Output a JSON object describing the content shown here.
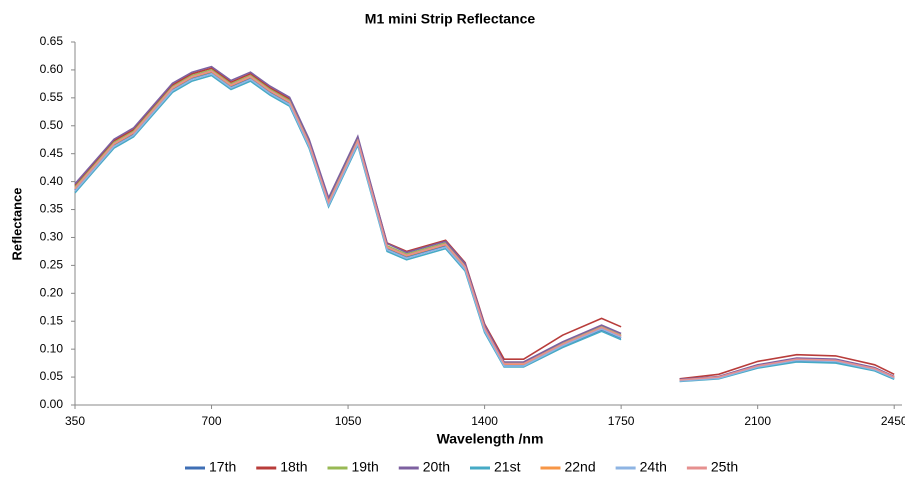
{
  "chart_data": {
    "type": "line",
    "title": "M1 mini Strip Reflectance",
    "xlabel": "Wavelength /nm",
    "ylabel": "Reflectance",
    "x": [
      350,
      400,
      450,
      500,
      550,
      600,
      650,
      700,
      750,
      800,
      850,
      900,
      950,
      1000,
      1075,
      1150,
      1200,
      1300,
      1350,
      1400,
      1450,
      1500,
      1600,
      1700,
      1750,
      1800,
      1900,
      2000,
      2100,
      2200,
      2300,
      2400,
      2450
    ],
    "series": [
      {
        "name": "17th",
        "color": "#3f6fb5",
        "values": [
          0.385,
          0.425,
          0.465,
          0.485,
          0.525,
          0.565,
          0.585,
          0.595,
          0.57,
          0.585,
          0.56,
          0.54,
          0.465,
          0.36,
          0.47,
          0.28,
          0.265,
          0.285,
          0.245,
          0.135,
          0.072,
          0.072,
          0.105,
          0.135,
          0.12,
          null,
          0.043,
          0.048,
          0.067,
          0.079,
          0.077,
          0.062,
          0.048
        ]
      },
      {
        "name": "18th",
        "color": "#b83c3a",
        "values": [
          0.393,
          0.433,
          0.473,
          0.493,
          0.533,
          0.573,
          0.593,
          0.603,
          0.578,
          0.593,
          0.568,
          0.548,
          0.473,
          0.368,
          0.478,
          0.29,
          0.275,
          0.295,
          0.255,
          0.145,
          0.082,
          0.082,
          0.125,
          0.155,
          0.14,
          null,
          0.047,
          0.055,
          0.078,
          0.09,
          0.088,
          0.072,
          0.055
        ]
      },
      {
        "name": "19th",
        "color": "#98b954",
        "values": [
          0.39,
          0.43,
          0.47,
          0.49,
          0.53,
          0.57,
          0.59,
          0.6,
          0.575,
          0.59,
          0.565,
          0.545,
          0.47,
          0.365,
          0.475,
          0.285,
          0.27,
          0.29,
          0.25,
          0.14,
          0.075,
          0.075,
          0.11,
          0.14,
          0.125,
          null,
          0.045,
          0.05,
          0.07,
          0.082,
          0.08,
          0.065,
          0.05
        ]
      },
      {
        "name": "20th",
        "color": "#7d60a0",
        "values": [
          0.396,
          0.436,
          0.476,
          0.496,
          0.536,
          0.576,
          0.596,
          0.606,
          0.581,
          0.596,
          0.571,
          0.551,
          0.476,
          0.371,
          0.481,
          0.289,
          0.273,
          0.293,
          0.253,
          0.143,
          0.077,
          0.077,
          0.113,
          0.143,
          0.128,
          null,
          0.046,
          0.051,
          0.072,
          0.084,
          0.082,
          0.067,
          0.051
        ]
      },
      {
        "name": "21st",
        "color": "#46aac5",
        "values": [
          0.38,
          0.42,
          0.46,
          0.48,
          0.52,
          0.56,
          0.58,
          0.59,
          0.565,
          0.58,
          0.555,
          0.535,
          0.46,
          0.355,
          0.465,
          0.275,
          0.26,
          0.28,
          0.24,
          0.13,
          0.068,
          0.068,
          0.103,
          0.132,
          0.117,
          null,
          0.042,
          0.047,
          0.066,
          0.077,
          0.075,
          0.061,
          0.046
        ]
      },
      {
        "name": "22nd",
        "color": "#f79646",
        "values": [
          0.387,
          0.427,
          0.467,
          0.487,
          0.527,
          0.567,
          0.587,
          0.597,
          0.572,
          0.587,
          0.562,
          0.542,
          0.467,
          0.362,
          0.472,
          0.282,
          0.267,
          0.287,
          0.247,
          0.137,
          0.073,
          0.073,
          0.108,
          0.138,
          0.123,
          null,
          0.044,
          0.049,
          0.069,
          0.081,
          0.079,
          0.064,
          0.049
        ]
      },
      {
        "name": "24th",
        "color": "#8eb4e3",
        "values": [
          0.383,
          0.423,
          0.463,
          0.483,
          0.523,
          0.563,
          0.583,
          0.593,
          0.568,
          0.583,
          0.558,
          0.538,
          0.463,
          0.358,
          0.468,
          0.278,
          0.263,
          0.283,
          0.243,
          0.133,
          0.07,
          0.07,
          0.106,
          0.136,
          0.121,
          null,
          0.043,
          0.048,
          0.068,
          0.08,
          0.078,
          0.063,
          0.048
        ]
      },
      {
        "name": "25th",
        "color": "#e6908f",
        "values": [
          0.388,
          0.428,
          0.468,
          0.488,
          0.528,
          0.568,
          0.588,
          0.598,
          0.573,
          0.588,
          0.563,
          0.543,
          0.468,
          0.363,
          0.473,
          0.283,
          0.268,
          0.288,
          0.248,
          0.138,
          0.074,
          0.074,
          0.109,
          0.139,
          0.124,
          null,
          0.045,
          0.05,
          0.07,
          0.082,
          0.08,
          0.065,
          0.05
        ]
      }
    ],
    "xlim": [
      350,
      2470
    ],
    "xticks": [
      350,
      700,
      1050,
      1400,
      1750,
      2100,
      2450
    ],
    "ylim": [
      0,
      0.65
    ],
    "yticks": [
      {
        "value": 0,
        "label": "0.00"
      },
      {
        "value": 0.05,
        "label": "0.05"
      },
      {
        "value": 0.1,
        "label": "0.10"
      },
      {
        "value": 0.15,
        "label": "0.15"
      },
      {
        "value": 0.2,
        "label": "0.20"
      },
      {
        "value": 0.25,
        "label": "0.25"
      },
      {
        "value": 0.3,
        "label": "0.30"
      },
      {
        "value": 0.35,
        "label": "0.35"
      },
      {
        "value": 0.4,
        "label": "0.40"
      },
      {
        "value": 0.45,
        "label": "0.45"
      },
      {
        "value": 0.5,
        "label": "0.50"
      },
      {
        "value": 0.55,
        "label": "0.55"
      },
      {
        "value": 0.6,
        "label": "0.60"
      },
      {
        "value": 0.65,
        "label": "0.65"
      }
    ],
    "grid": false,
    "legend": "bottom"
  }
}
